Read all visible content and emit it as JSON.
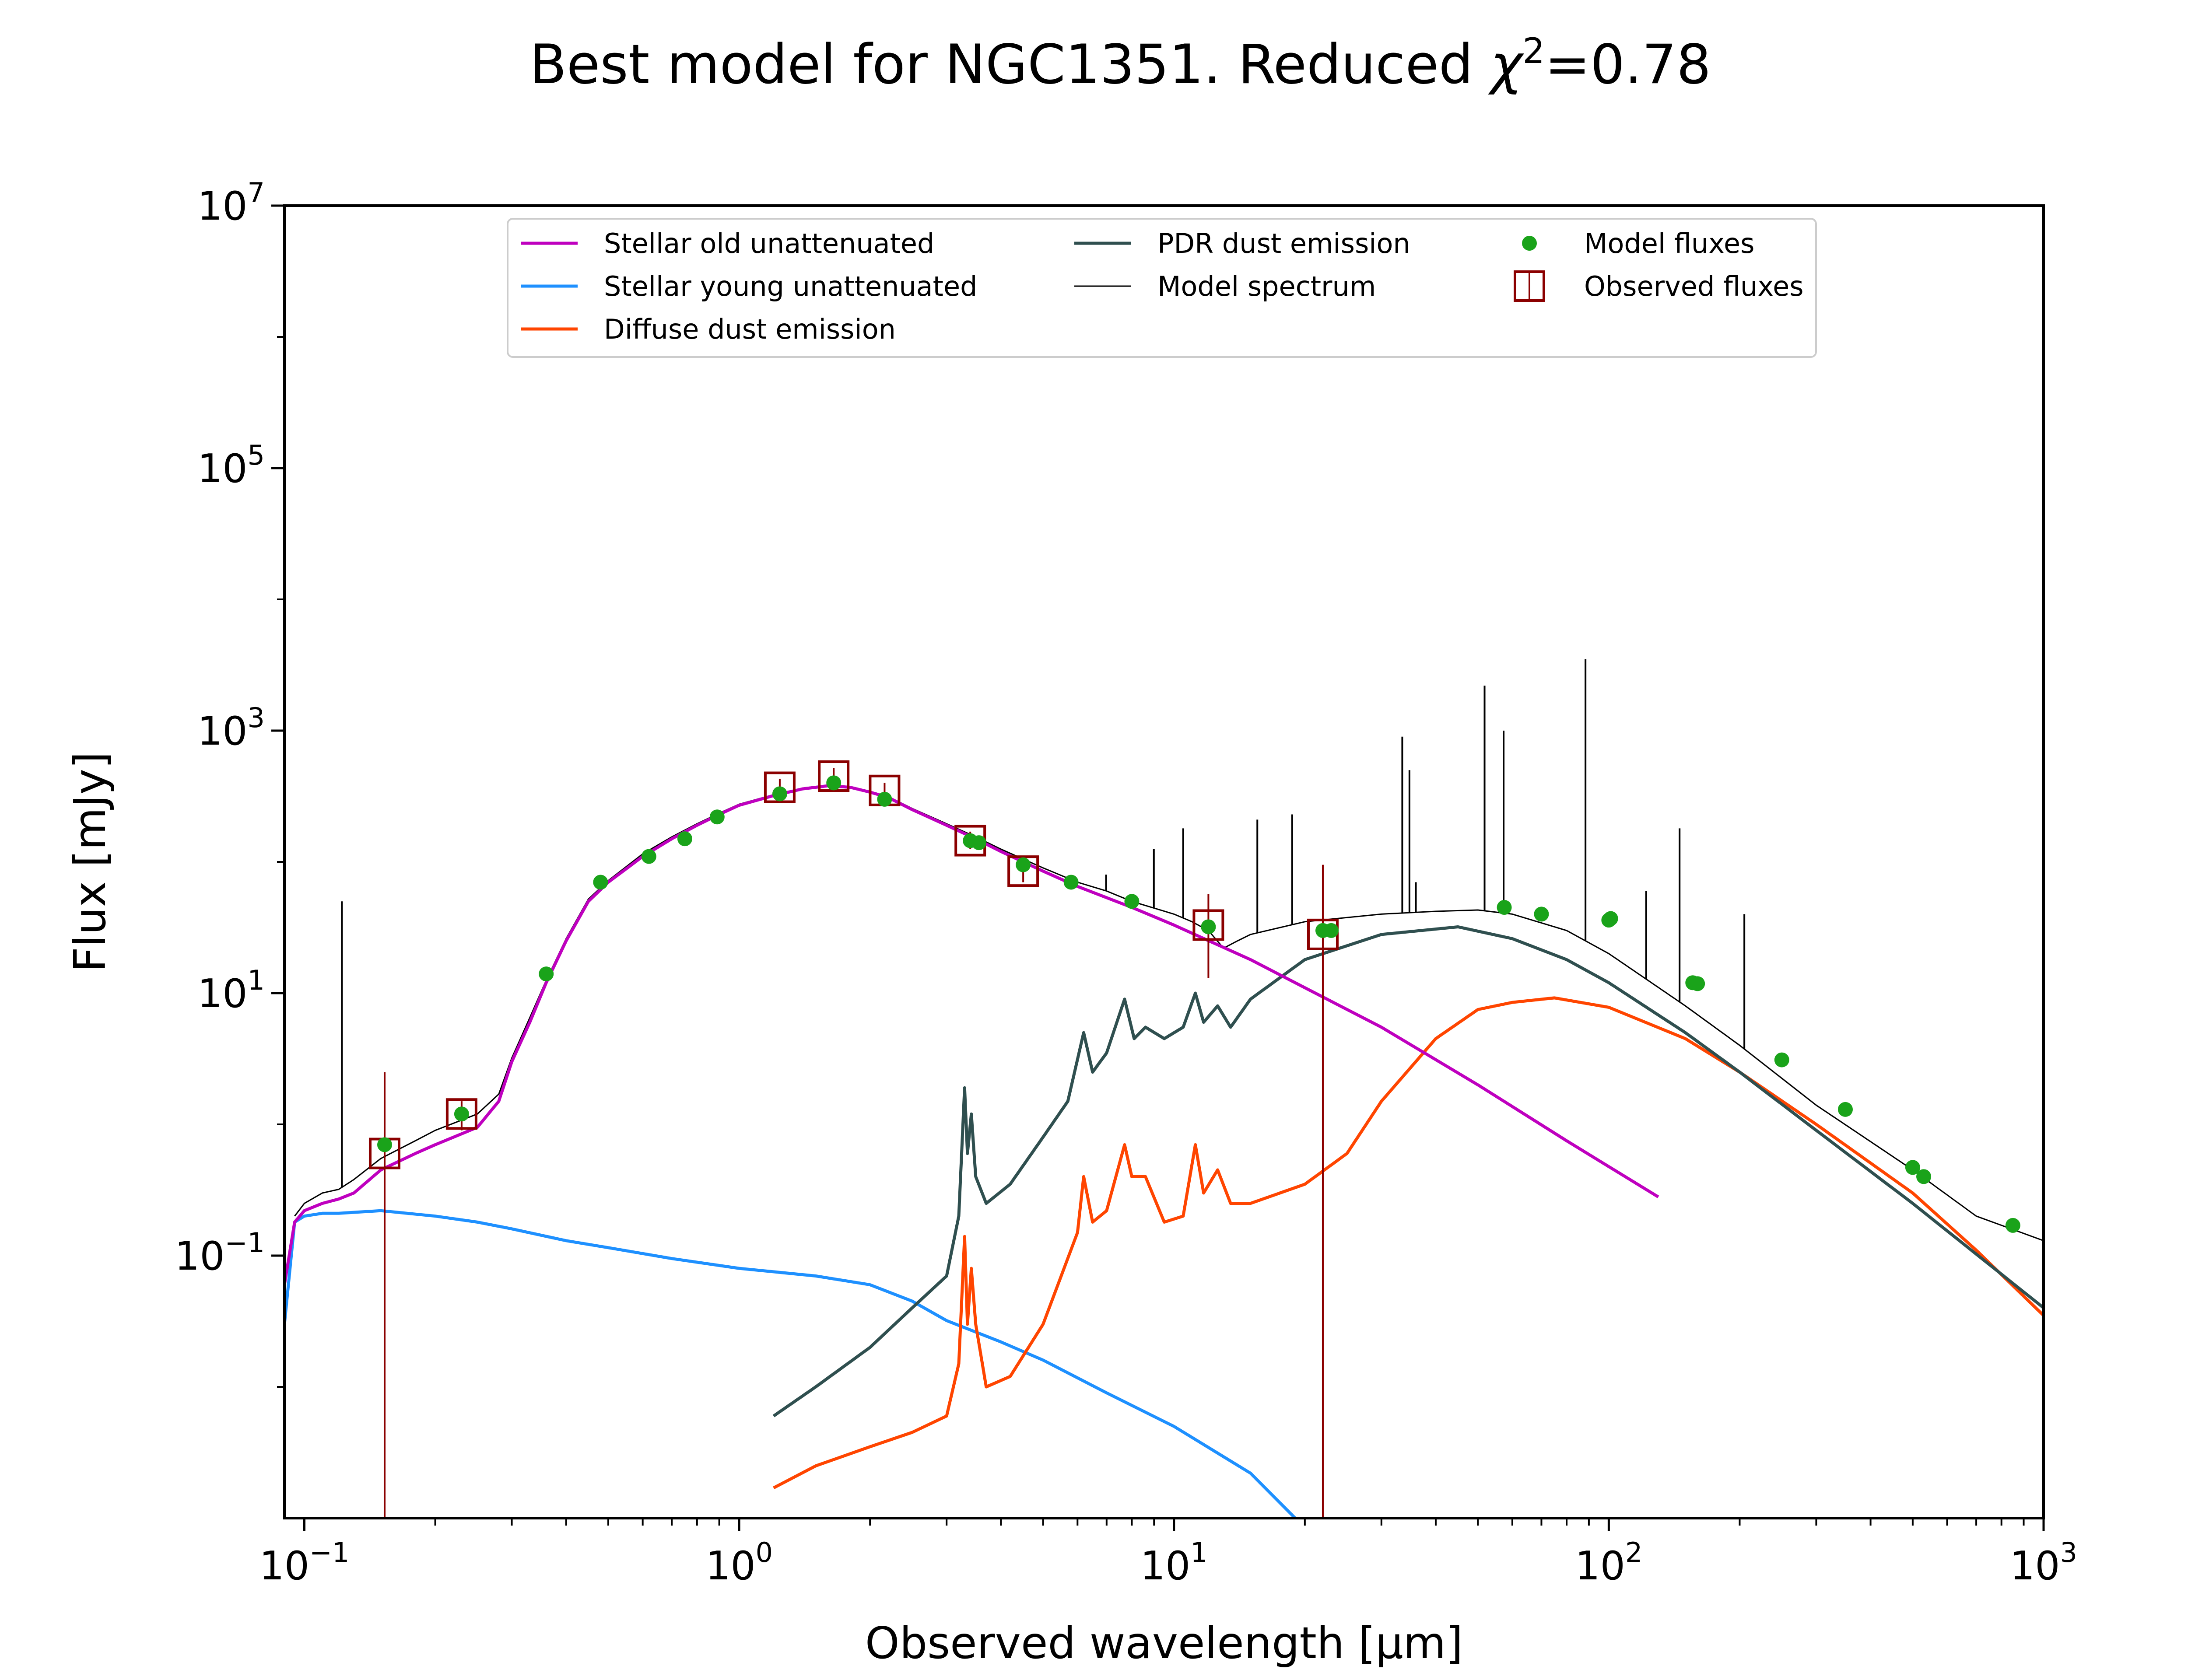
{
  "chart_data": {
    "type": "line",
    "title": "Best model for NGC1351. Reduced χ²=0.78",
    "title_parts": {
      "prefix": "Best model for NGC1351. Reduced ",
      "chi": "χ",
      "sup": "2",
      "suffix": "=0.78"
    },
    "xlabel": "Observed wavelength [μm]",
    "ylabel": "Flux [mJy]",
    "xscale": "log",
    "yscale": "log",
    "xlim": [
      0.09,
      1000
    ],
    "ylim": [
      0.001,
      10000000
    ],
    "x_ticks": [
      {
        "value": 0.1,
        "base": "10",
        "exp": "−1"
      },
      {
        "value": 1,
        "base": "10",
        "exp": "0"
      },
      {
        "value": 10,
        "base": "10",
        "exp": "1"
      },
      {
        "value": 100,
        "base": "10",
        "exp": "2"
      },
      {
        "value": 1000,
        "base": "10",
        "exp": "3"
      }
    ],
    "y_ticks": [
      {
        "value": 0.1,
        "base": "10",
        "exp": "−1"
      },
      {
        "value": 10,
        "base": "10",
        "exp": "1"
      },
      {
        "value": 1000,
        "base": "10",
        "exp": "3"
      },
      {
        "value": 100000,
        "base": "10",
        "exp": "5"
      },
      {
        "value": 10000000,
        "base": "10",
        "exp": "7"
      }
    ],
    "grid": false,
    "legend_position": "top-center",
    "colors": {
      "stellar_old": "#bf00bf",
      "stellar_young": "#1e90ff",
      "diffuse_dust": "#ff4500",
      "pdr_dust": "#2f4f4f",
      "model_spectrum": "#000000",
      "model_fluxes": "#1aa31a",
      "observed_fluxes": "#8b0000"
    },
    "series": [
      {
        "name": "Stellar old unattenuated",
        "key": "stellar_old",
        "points": [
          [
            0.09,
            0.06
          ],
          [
            0.095,
            0.18
          ],
          [
            0.1,
            0.22
          ],
          [
            0.11,
            0.25
          ],
          [
            0.12,
            0.27
          ],
          [
            0.13,
            0.3
          ],
          [
            0.15,
            0.45
          ],
          [
            0.18,
            0.6
          ],
          [
            0.2,
            0.7
          ],
          [
            0.25,
            0.95
          ],
          [
            0.28,
            1.5
          ],
          [
            0.3,
            3
          ],
          [
            0.33,
            6
          ],
          [
            0.36,
            12
          ],
          [
            0.4,
            25
          ],
          [
            0.45,
            50
          ],
          [
            0.5,
            70
          ],
          [
            0.6,
            110
          ],
          [
            0.7,
            150
          ],
          [
            0.8,
            190
          ],
          [
            0.9,
            230
          ],
          [
            1.0,
            270
          ],
          [
            1.2,
            320
          ],
          [
            1.4,
            360
          ],
          [
            1.6,
            380
          ],
          [
            1.8,
            370
          ],
          [
            2.0,
            340
          ],
          [
            2.2,
            310
          ],
          [
            2.5,
            250
          ],
          [
            3.0,
            190
          ],
          [
            3.5,
            150
          ],
          [
            4.0,
            120
          ],
          [
            4.5,
            100
          ],
          [
            5.0,
            85
          ],
          [
            6.0,
            65
          ],
          [
            8.0,
            45
          ],
          [
            10.0,
            33
          ],
          [
            15.0,
            18
          ],
          [
            20.0,
            11
          ],
          [
            30.0,
            5.5
          ],
          [
            50.0,
            2
          ],
          [
            80.0,
            0.75
          ],
          [
            130.0,
            0.28
          ]
        ]
      },
      {
        "name": "Stellar young unattenuated",
        "key": "stellar_young",
        "points": [
          [
            0.09,
            0.03
          ],
          [
            0.095,
            0.18
          ],
          [
            0.1,
            0.2
          ],
          [
            0.11,
            0.21
          ],
          [
            0.12,
            0.21
          ],
          [
            0.15,
            0.22
          ],
          [
            0.2,
            0.2
          ],
          [
            0.25,
            0.18
          ],
          [
            0.3,
            0.16
          ],
          [
            0.4,
            0.13
          ],
          [
            0.5,
            0.115
          ],
          [
            0.7,
            0.095
          ],
          [
            1.0,
            0.08
          ],
          [
            1.5,
            0.07
          ],
          [
            2.0,
            0.06
          ],
          [
            2.5,
            0.045
          ],
          [
            3.0,
            0.032
          ],
          [
            4.0,
            0.022
          ],
          [
            5.0,
            0.016
          ],
          [
            7.0,
            0.009
          ],
          [
            10.0,
            0.005
          ],
          [
            15.0,
            0.0022
          ],
          [
            19.0,
            0.001
          ]
        ]
      },
      {
        "name": "Diffuse dust emission",
        "key": "diffuse_dust",
        "points": [
          [
            1.2,
            0.0017
          ],
          [
            1.5,
            0.0025
          ],
          [
            2.0,
            0.0035
          ],
          [
            2.5,
            0.0045
          ],
          [
            3.0,
            0.006
          ],
          [
            3.2,
            0.015
          ],
          [
            3.3,
            0.14
          ],
          [
            3.35,
            0.03
          ],
          [
            3.42,
            0.08
          ],
          [
            3.5,
            0.03
          ],
          [
            3.7,
            0.01
          ],
          [
            4.2,
            0.012
          ],
          [
            5.0,
            0.03
          ],
          [
            6.0,
            0.15
          ],
          [
            6.2,
            0.4
          ],
          [
            6.5,
            0.18
          ],
          [
            7.0,
            0.22
          ],
          [
            7.7,
            0.7
          ],
          [
            8.0,
            0.4
          ],
          [
            8.6,
            0.4
          ],
          [
            9.5,
            0.18
          ],
          [
            10.5,
            0.2
          ],
          [
            11.2,
            0.7
          ],
          [
            11.7,
            0.3
          ],
          [
            12.6,
            0.45
          ],
          [
            13.5,
            0.25
          ],
          [
            15.0,
            0.25
          ],
          [
            20.0,
            0.35
          ],
          [
            25.0,
            0.6
          ],
          [
            30.0,
            1.5
          ],
          [
            40.0,
            4.5
          ],
          [
            50.0,
            7.5
          ],
          [
            60.0,
            8.5
          ],
          [
            75.0,
            9.2
          ],
          [
            100.0,
            7.8
          ],
          [
            150.0,
            4.5
          ],
          [
            200.0,
            2.5
          ],
          [
            300.0,
            1.0
          ],
          [
            500.0,
            0.3
          ],
          [
            700.0,
            0.11
          ],
          [
            1000.0,
            0.035
          ]
        ]
      },
      {
        "name": "PDR dust emission",
        "key": "pdr_dust",
        "points": [
          [
            1.2,
            0.006
          ],
          [
            1.5,
            0.01
          ],
          [
            2.0,
            0.02
          ],
          [
            2.5,
            0.04
          ],
          [
            3.0,
            0.07
          ],
          [
            3.2,
            0.2
          ],
          [
            3.3,
            1.9
          ],
          [
            3.35,
            0.6
          ],
          [
            3.42,
            1.2
          ],
          [
            3.5,
            0.4
          ],
          [
            3.7,
            0.25
          ],
          [
            4.2,
            0.35
          ],
          [
            5.0,
            0.8
          ],
          [
            5.7,
            1.5
          ],
          [
            6.2,
            5
          ],
          [
            6.5,
            2.5
          ],
          [
            7.0,
            3.5
          ],
          [
            7.7,
            9
          ],
          [
            8.1,
            4.5
          ],
          [
            8.6,
            5.5
          ],
          [
            9.5,
            4.5
          ],
          [
            10.5,
            5.5
          ],
          [
            11.2,
            10
          ],
          [
            11.7,
            6
          ],
          [
            12.6,
            8
          ],
          [
            13.5,
            5.5
          ],
          [
            15.0,
            9
          ],
          [
            20.0,
            18
          ],
          [
            30.0,
            28
          ],
          [
            45.0,
            32
          ],
          [
            60.0,
            26
          ],
          [
            80.0,
            18
          ],
          [
            100.0,
            12
          ],
          [
            150.0,
            5
          ],
          [
            200.0,
            2.5
          ],
          [
            300.0,
            0.9
          ],
          [
            500.0,
            0.25
          ],
          [
            1000.0,
            0.04
          ]
        ]
      },
      {
        "name": "Model spectrum",
        "key": "model_spectrum",
        "points": [
          [
            0.095,
            0.2
          ],
          [
            0.1,
            0.25
          ],
          [
            0.11,
            0.3
          ],
          [
            0.12,
            0.32
          ],
          [
            0.13,
            0.38
          ],
          [
            0.15,
            0.55
          ],
          [
            0.18,
            0.75
          ],
          [
            0.2,
            0.9
          ],
          [
            0.25,
            1.2
          ],
          [
            0.28,
            1.7
          ],
          [
            0.3,
            3.2
          ],
          [
            0.33,
            6.5
          ],
          [
            0.36,
            12.5
          ],
          [
            0.4,
            26
          ],
          [
            0.45,
            52
          ],
          [
            0.5,
            72
          ],
          [
            0.6,
            115
          ],
          [
            0.7,
            155
          ],
          [
            0.8,
            195
          ],
          [
            0.9,
            235
          ],
          [
            1.0,
            275
          ],
          [
            1.2,
            325
          ],
          [
            1.4,
            365
          ],
          [
            1.6,
            385
          ],
          [
            1.8,
            375
          ],
          [
            2.0,
            345
          ],
          [
            2.2,
            315
          ],
          [
            2.5,
            255
          ],
          [
            3.0,
            195
          ],
          [
            3.5,
            155
          ],
          [
            4.0,
            125
          ],
          [
            4.5,
            105
          ],
          [
            5.0,
            90
          ],
          [
            6.0,
            70
          ],
          [
            7.0,
            60
          ],
          [
            8.0,
            50
          ],
          [
            10.0,
            40
          ],
          [
            11.0,
            35
          ],
          [
            12.0,
            30
          ],
          [
            13.0,
            22
          ],
          [
            14.0,
            25
          ],
          [
            15.0,
            28
          ],
          [
            20.0,
            35
          ],
          [
            30.0,
            40
          ],
          [
            40.0,
            42
          ],
          [
            50.0,
            43
          ],
          [
            60.0,
            40
          ],
          [
            80.0,
            30
          ],
          [
            100.0,
            20
          ],
          [
            150.0,
            8
          ],
          [
            200.0,
            4
          ],
          [
            300.0,
            1.4
          ],
          [
            500.0,
            0.45
          ],
          [
            700.0,
            0.2
          ],
          [
            1000.0,
            0.13
          ]
        ],
        "emission_lines": [
          [
            0.122,
            50
          ],
          [
            6.98,
            80
          ],
          [
            8.99,
            125
          ],
          [
            10.5,
            180
          ],
          [
            15.55,
            210
          ],
          [
            18.7,
            230
          ],
          [
            33.5,
            900
          ],
          [
            34.8,
            500
          ],
          [
            36.0,
            70
          ],
          [
            51.8,
            2200
          ],
          [
            57.3,
            1000
          ],
          [
            88.4,
            3500
          ],
          [
            121.9,
            60
          ],
          [
            145.5,
            180
          ],
          [
            205.0,
            40
          ]
        ]
      }
    ],
    "model_fluxes": [
      [
        0.153,
        0.7
      ],
      [
        0.23,
        1.2
      ],
      [
        0.36,
        14
      ],
      [
        0.48,
        70
      ],
      [
        0.62,
        110
      ],
      [
        0.75,
        150
      ],
      [
        0.89,
        220
      ],
      [
        1.24,
        330
      ],
      [
        1.65,
        400
      ],
      [
        2.16,
        300
      ],
      [
        3.4,
        145
      ],
      [
        3.56,
        140
      ],
      [
        4.5,
        95
      ],
      [
        5.8,
        70
      ],
      [
        8.0,
        50
      ],
      [
        12.0,
        32
      ],
      [
        22.0,
        30
      ],
      [
        23.0,
        30
      ],
      [
        57.5,
        45
      ],
      [
        70.0,
        40
      ],
      [
        100.0,
        36
      ],
      [
        101.0,
        37
      ],
      [
        156.0,
        12
      ],
      [
        160.0,
        11.8
      ],
      [
        250.0,
        3.1
      ],
      [
        350.0,
        1.3
      ],
      [
        500.0,
        0.47
      ],
      [
        530.0,
        0.4
      ],
      [
        850.0,
        0.17
      ]
    ],
    "observed_fluxes": [
      {
        "x": 0.153,
        "y": 0.6,
        "err_low": 0.001,
        "err_high": 2.5
      },
      {
        "x": 0.23,
        "y": 1.2,
        "err_low": 0.9,
        "err_high": 1.5
      },
      {
        "x": 1.24,
        "y": 370,
        "err_low": 320,
        "err_high": 430
      },
      {
        "x": 1.65,
        "y": 450,
        "err_low": 390,
        "err_high": 520
      },
      {
        "x": 2.16,
        "y": 350,
        "err_low": 300,
        "err_high": 400
      },
      {
        "x": 3.4,
        "y": 145,
        "err_low": 125,
        "err_high": 170
      },
      {
        "x": 4.5,
        "y": 85,
        "err_low": 70,
        "err_high": 100
      },
      {
        "x": 12.0,
        "y": 33,
        "err_low": 13,
        "err_high": 57
      },
      {
        "x": 22.0,
        "y": 28,
        "err_low": 0.001,
        "err_high": 95
      }
    ],
    "legend": {
      "entries": [
        {
          "label": "Stellar old unattenuated",
          "key": "stellar_old",
          "marker": "line",
          "col": 0,
          "row": 0
        },
        {
          "label": "Stellar young unattenuated",
          "key": "stellar_young",
          "marker": "line",
          "col": 0,
          "row": 1
        },
        {
          "label": "Diffuse dust emission",
          "key": "diffuse_dust",
          "marker": "line",
          "col": 0,
          "row": 2
        },
        {
          "label": "PDR dust emission",
          "key": "pdr_dust",
          "marker": "line",
          "col": 1,
          "row": 0
        },
        {
          "label": "Model spectrum",
          "key": "model_spectrum",
          "marker": "thinline",
          "col": 1,
          "row": 1
        },
        {
          "label": "Model fluxes",
          "key": "model_fluxes",
          "marker": "dot",
          "col": 2,
          "row": 0
        },
        {
          "label": "Observed fluxes",
          "key": "observed_fluxes",
          "marker": "box",
          "col": 2,
          "row": 1
        }
      ]
    }
  }
}
